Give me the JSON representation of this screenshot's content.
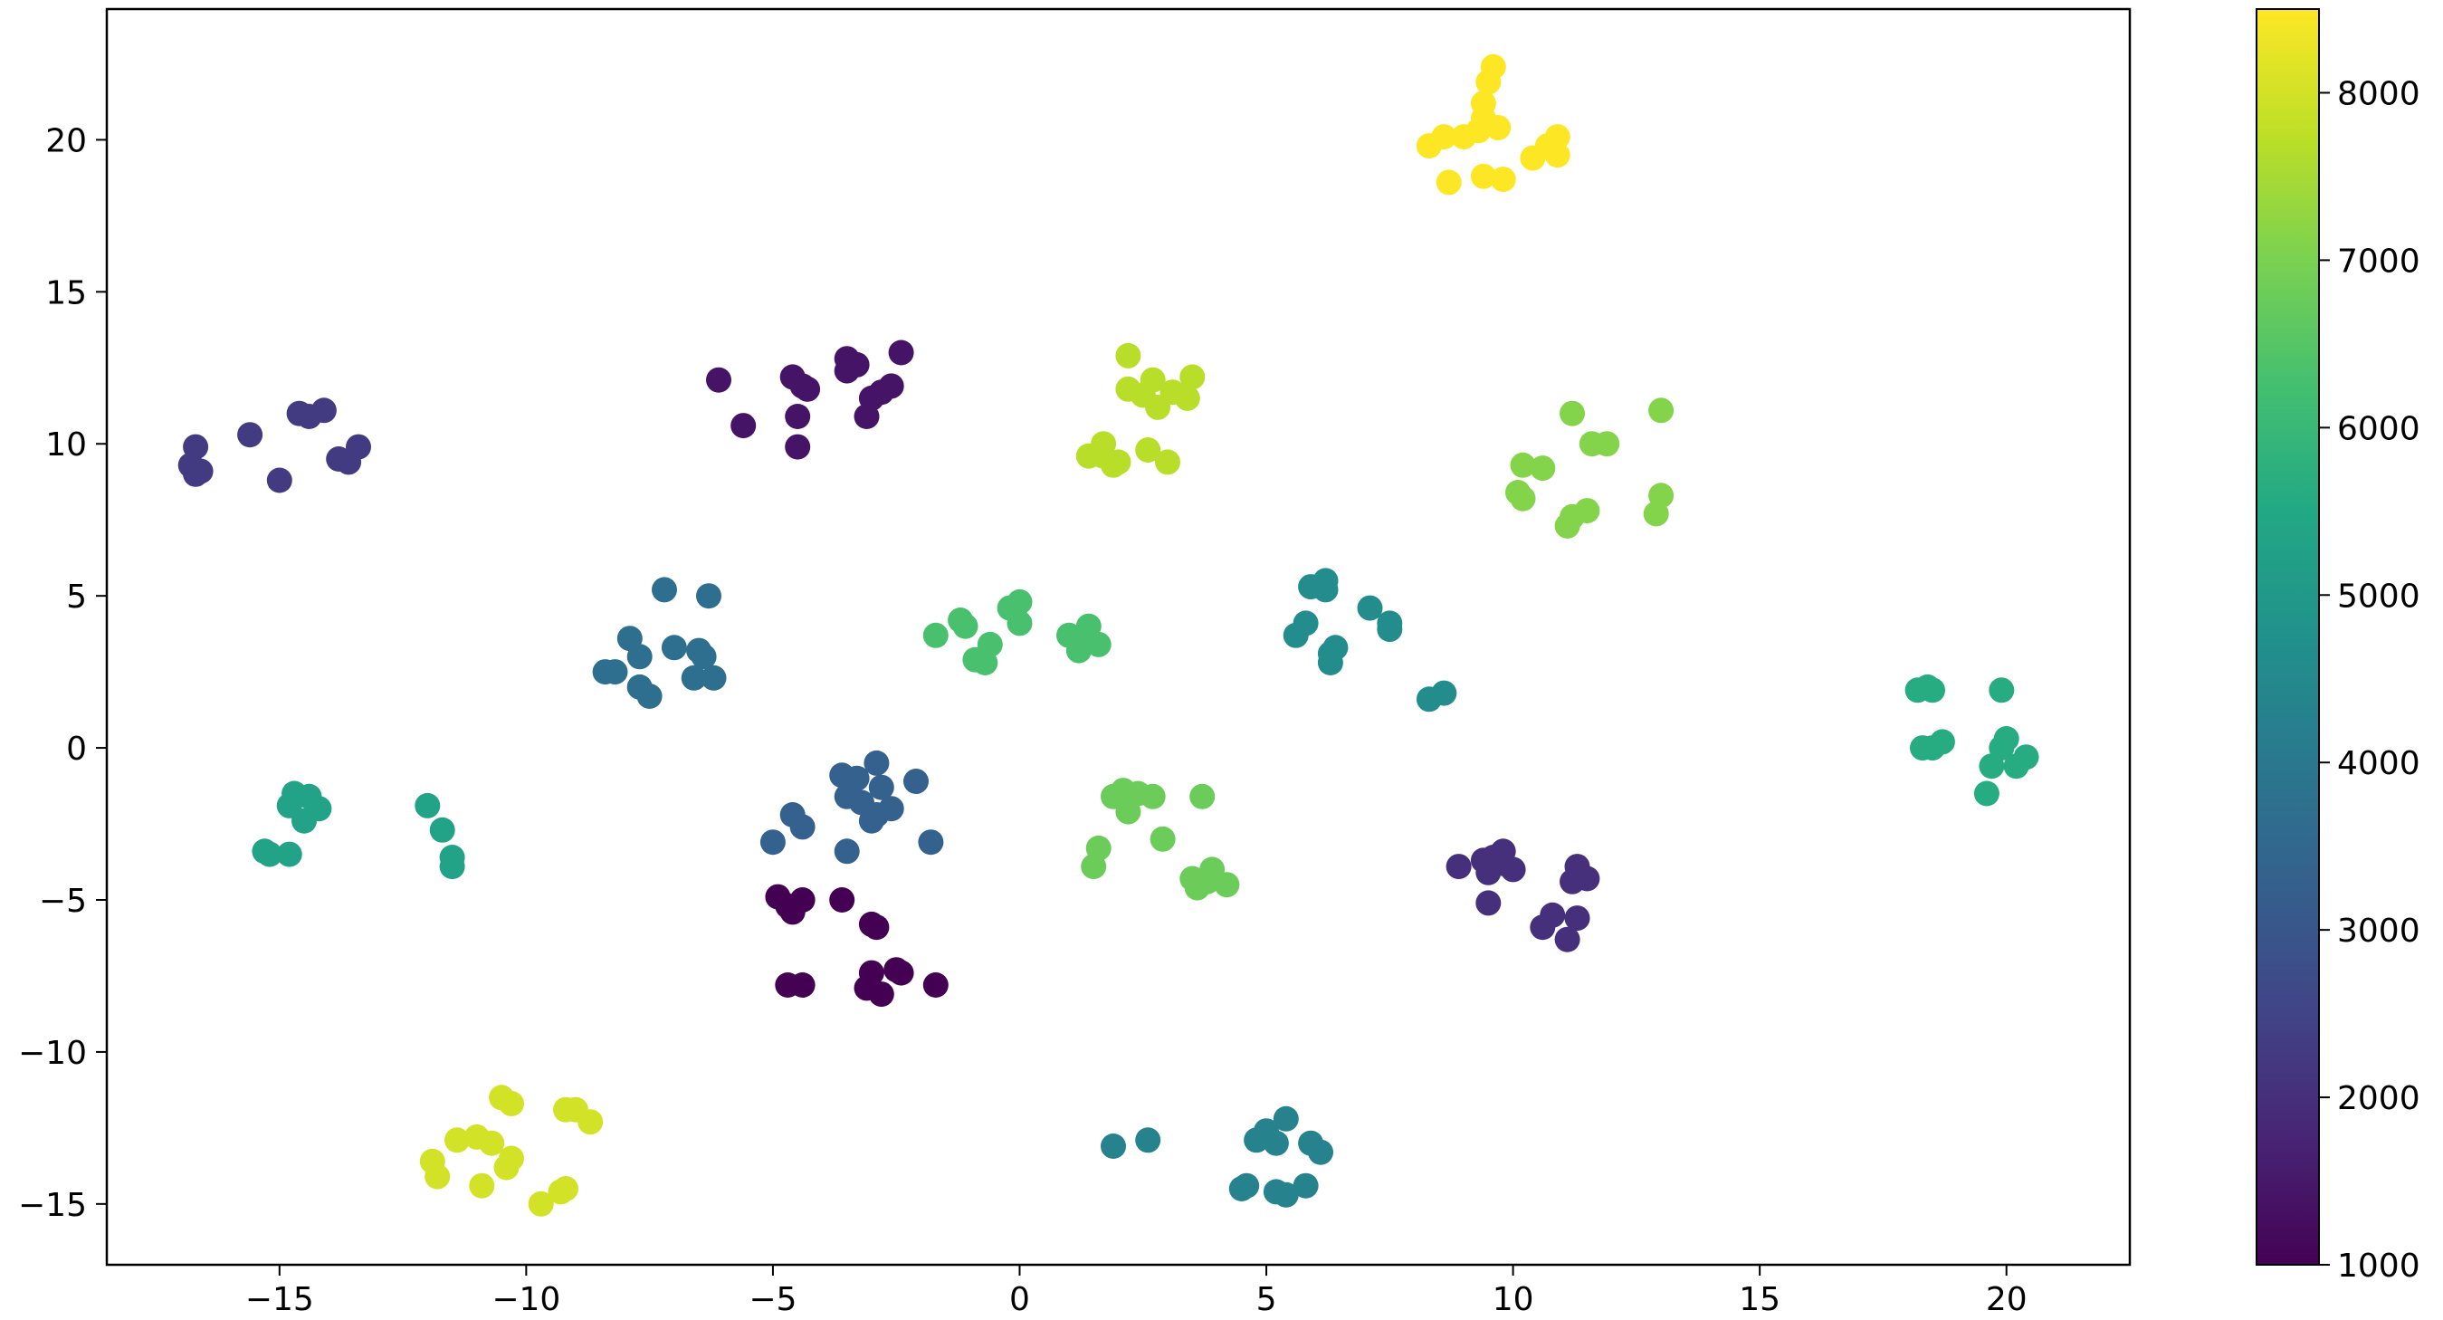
{
  "chart_data": {
    "type": "scatter",
    "title": "",
    "xlabel": "",
    "ylabel": "",
    "xlim": [
      -18.5,
      22.5
    ],
    "ylim": [
      -17.0,
      24.3
    ],
    "grid": false,
    "x_ticks": [
      -15,
      -10,
      -5,
      0,
      5,
      10,
      15,
      20
    ],
    "x_tick_labels": [
      "−15",
      "−10",
      "−5",
      "0",
      "5",
      "10",
      "15",
      "20"
    ],
    "y_ticks": [
      -15,
      -10,
      -5,
      0,
      5,
      10,
      15,
      20
    ],
    "y_tick_labels": [
      "−15",
      "−10",
      "−5",
      "0",
      "5",
      "10",
      "15",
      "20"
    ],
    "colorbar": {
      "colormap": "viridis",
      "range": [
        1000,
        8500
      ],
      "ticks": [
        1000,
        2000,
        3000,
        4000,
        5000,
        6000,
        7000,
        8000
      ],
      "tick_labels": [
        "1000",
        "2000",
        "3000",
        "4000",
        "5000",
        "6000",
        "7000",
        "8000"
      ]
    },
    "marker_color_note": "viridis",
    "points": [
      {
        "x": 9.6,
        "y": 22.4,
        "c": 8500
      },
      {
        "x": 9.5,
        "y": 21.9,
        "c": 8500
      },
      {
        "x": 9.4,
        "y": 21.2,
        "c": 8500
      },
      {
        "x": 9.4,
        "y": 20.7,
        "c": 8500
      },
      {
        "x": 9.3,
        "y": 20.3,
        "c": 8500
      },
      {
        "x": 9.7,
        "y": 20.4,
        "c": 8500
      },
      {
        "x": 9.0,
        "y": 20.1,
        "c": 8500
      },
      {
        "x": 8.6,
        "y": 20.1,
        "c": 8500
      },
      {
        "x": 8.3,
        "y": 19.8,
        "c": 8500
      },
      {
        "x": 8.7,
        "y": 18.6,
        "c": 8500
      },
      {
        "x": 9.4,
        "y": 18.8,
        "c": 8500
      },
      {
        "x": 9.8,
        "y": 18.7,
        "c": 8500
      },
      {
        "x": 10.4,
        "y": 19.4,
        "c": 8500
      },
      {
        "x": 10.7,
        "y": 19.8,
        "c": 8500
      },
      {
        "x": 10.9,
        "y": 20.1,
        "c": 8500
      },
      {
        "x": 10.9,
        "y": 19.5,
        "c": 8500
      },
      {
        "x": -2.4,
        "y": 13.0,
        "c": 1400
      },
      {
        "x": -3.5,
        "y": 12.8,
        "c": 1400
      },
      {
        "x": -3.3,
        "y": 12.6,
        "c": 1400
      },
      {
        "x": -3.5,
        "y": 12.4,
        "c": 1400
      },
      {
        "x": -4.6,
        "y": 12.2,
        "c": 1400
      },
      {
        "x": -4.4,
        "y": 11.9,
        "c": 1400
      },
      {
        "x": -4.3,
        "y": 11.8,
        "c": 1400
      },
      {
        "x": -6.1,
        "y": 12.1,
        "c": 1400
      },
      {
        "x": -2.6,
        "y": 11.9,
        "c": 1400
      },
      {
        "x": -2.8,
        "y": 11.7,
        "c": 1400
      },
      {
        "x": -3.0,
        "y": 11.5,
        "c": 1400
      },
      {
        "x": -4.5,
        "y": 10.9,
        "c": 1400
      },
      {
        "x": -3.1,
        "y": 10.9,
        "c": 1400
      },
      {
        "x": -5.6,
        "y": 10.6,
        "c": 1400
      },
      {
        "x": -4.5,
        "y": 9.9,
        "c": 1400
      },
      {
        "x": -16.7,
        "y": 9.9,
        "c": 2300
      },
      {
        "x": -16.8,
        "y": 9.3,
        "c": 2300
      },
      {
        "x": -16.7,
        "y": 9.0,
        "c": 2300
      },
      {
        "x": -16.6,
        "y": 9.1,
        "c": 2300
      },
      {
        "x": -15.6,
        "y": 10.3,
        "c": 2300
      },
      {
        "x": -15.0,
        "y": 8.8,
        "c": 2300
      },
      {
        "x": -14.6,
        "y": 11.0,
        "c": 2300
      },
      {
        "x": -14.4,
        "y": 10.9,
        "c": 2300
      },
      {
        "x": -14.1,
        "y": 11.1,
        "c": 2300
      },
      {
        "x": -13.8,
        "y": 9.5,
        "c": 2300
      },
      {
        "x": -13.6,
        "y": 9.4,
        "c": 2300
      },
      {
        "x": -13.4,
        "y": 9.9,
        "c": 2300
      },
      {
        "x": 2.2,
        "y": 12.9,
        "c": 7700
      },
      {
        "x": 3.5,
        "y": 12.2,
        "c": 7700
      },
      {
        "x": 2.7,
        "y": 12.1,
        "c": 7700
      },
      {
        "x": 2.2,
        "y": 11.8,
        "c": 7700
      },
      {
        "x": 2.5,
        "y": 11.6,
        "c": 7700
      },
      {
        "x": 3.1,
        "y": 11.7,
        "c": 7700
      },
      {
        "x": 3.4,
        "y": 11.5,
        "c": 7700
      },
      {
        "x": 2.8,
        "y": 11.2,
        "c": 7700
      },
      {
        "x": 1.7,
        "y": 10.0,
        "c": 7700
      },
      {
        "x": 1.4,
        "y": 9.6,
        "c": 7700
      },
      {
        "x": 1.7,
        "y": 9.6,
        "c": 7700
      },
      {
        "x": 1.9,
        "y": 9.3,
        "c": 7700
      },
      {
        "x": 2.0,
        "y": 9.4,
        "c": 7700
      },
      {
        "x": 2.6,
        "y": 9.8,
        "c": 7700
      },
      {
        "x": 3.0,
        "y": 9.4,
        "c": 7700
      },
      {
        "x": 11.2,
        "y": 11.0,
        "c": 7100
      },
      {
        "x": 13.0,
        "y": 11.1,
        "c": 7100
      },
      {
        "x": 11.6,
        "y": 10.0,
        "c": 7100
      },
      {
        "x": 11.9,
        "y": 10.0,
        "c": 7100
      },
      {
        "x": 10.2,
        "y": 9.3,
        "c": 7100
      },
      {
        "x": 10.6,
        "y": 9.2,
        "c": 7100
      },
      {
        "x": 10.1,
        "y": 8.4,
        "c": 7100
      },
      {
        "x": 10.2,
        "y": 8.2,
        "c": 7100
      },
      {
        "x": 13.0,
        "y": 8.3,
        "c": 7100
      },
      {
        "x": 11.5,
        "y": 7.8,
        "c": 7100
      },
      {
        "x": 11.2,
        "y": 7.6,
        "c": 7100
      },
      {
        "x": 11.1,
        "y": 7.3,
        "c": 7100
      },
      {
        "x": 12.9,
        "y": 7.7,
        "c": 7100
      },
      {
        "x": -7.2,
        "y": 5.2,
        "c": 3700
      },
      {
        "x": -6.3,
        "y": 5.0,
        "c": 3700
      },
      {
        "x": -7.9,
        "y": 3.6,
        "c": 3700
      },
      {
        "x": -7.0,
        "y": 3.3,
        "c": 3700
      },
      {
        "x": -6.5,
        "y": 3.2,
        "c": 3700
      },
      {
        "x": -6.4,
        "y": 3.0,
        "c": 3700
      },
      {
        "x": -7.7,
        "y": 3.0,
        "c": 3700
      },
      {
        "x": -8.4,
        "y": 2.5,
        "c": 3700
      },
      {
        "x": -8.2,
        "y": 2.5,
        "c": 3700
      },
      {
        "x": -6.6,
        "y": 2.3,
        "c": 3700
      },
      {
        "x": -6.2,
        "y": 2.3,
        "c": 3700
      },
      {
        "x": -7.7,
        "y": 2.0,
        "c": 3700
      },
      {
        "x": -7.5,
        "y": 1.7,
        "c": 3700
      },
      {
        "x": 0.0,
        "y": 4.8,
        "c": 6300
      },
      {
        "x": -0.2,
        "y": 4.6,
        "c": 6300
      },
      {
        "x": 0.0,
        "y": 4.1,
        "c": 6300
      },
      {
        "x": -1.2,
        "y": 4.2,
        "c": 6300
      },
      {
        "x": -1.1,
        "y": 4.0,
        "c": 6300
      },
      {
        "x": -1.7,
        "y": 3.7,
        "c": 6300
      },
      {
        "x": -0.6,
        "y": 3.4,
        "c": 6300
      },
      {
        "x": -0.9,
        "y": 2.9,
        "c": 6300
      },
      {
        "x": -0.7,
        "y": 2.8,
        "c": 6300
      },
      {
        "x": 1.0,
        "y": 3.7,
        "c": 6300
      },
      {
        "x": 1.4,
        "y": 4.0,
        "c": 6300
      },
      {
        "x": 1.4,
        "y": 3.5,
        "c": 6300
      },
      {
        "x": 1.6,
        "y": 3.4,
        "c": 6300
      },
      {
        "x": 1.2,
        "y": 3.2,
        "c": 6300
      },
      {
        "x": 6.2,
        "y": 5.5,
        "c": 4600
      },
      {
        "x": 5.9,
        "y": 5.3,
        "c": 4600
      },
      {
        "x": 6.2,
        "y": 5.2,
        "c": 4600
      },
      {
        "x": 7.1,
        "y": 4.6,
        "c": 4600
      },
      {
        "x": 5.8,
        "y": 4.1,
        "c": 4600
      },
      {
        "x": 7.5,
        "y": 4.1,
        "c": 4600
      },
      {
        "x": 7.5,
        "y": 3.9,
        "c": 4600
      },
      {
        "x": 5.6,
        "y": 3.7,
        "c": 4600
      },
      {
        "x": 6.4,
        "y": 3.3,
        "c": 4600
      },
      {
        "x": 6.3,
        "y": 3.1,
        "c": 4600
      },
      {
        "x": 6.3,
        "y": 2.8,
        "c": 4600
      },
      {
        "x": 8.6,
        "y": 1.8,
        "c": 4600
      },
      {
        "x": 8.3,
        "y": 1.6,
        "c": 4600
      },
      {
        "x": 18.2,
        "y": 1.9,
        "c": 5600
      },
      {
        "x": 18.4,
        "y": 2.0,
        "c": 5600
      },
      {
        "x": 18.5,
        "y": 1.9,
        "c": 5600
      },
      {
        "x": 19.9,
        "y": 1.9,
        "c": 5600
      },
      {
        "x": 20.0,
        "y": 0.3,
        "c": 5600
      },
      {
        "x": 18.7,
        "y": 0.2,
        "c": 5600
      },
      {
        "x": 18.3,
        "y": 0.0,
        "c": 5600
      },
      {
        "x": 18.5,
        "y": 0.0,
        "c": 5600
      },
      {
        "x": 19.9,
        "y": 0.0,
        "c": 5600
      },
      {
        "x": 20.4,
        "y": -0.3,
        "c": 5600
      },
      {
        "x": 20.2,
        "y": -0.6,
        "c": 5600
      },
      {
        "x": 19.7,
        "y": -0.6,
        "c": 5600
      },
      {
        "x": 19.6,
        "y": -1.5,
        "c": 5600
      },
      {
        "x": -2.9,
        "y": -0.5,
        "c": 3300
      },
      {
        "x": -3.6,
        "y": -0.9,
        "c": 3300
      },
      {
        "x": -3.3,
        "y": -1.0,
        "c": 3300
      },
      {
        "x": -2.1,
        "y": -1.1,
        "c": 3300
      },
      {
        "x": -2.8,
        "y": -1.3,
        "c": 3300
      },
      {
        "x": -3.5,
        "y": -1.6,
        "c": 3300
      },
      {
        "x": -3.2,
        "y": -1.8,
        "c": 3300
      },
      {
        "x": -2.6,
        "y": -2.0,
        "c": 3300
      },
      {
        "x": -4.6,
        "y": -2.2,
        "c": 3300
      },
      {
        "x": -2.9,
        "y": -2.2,
        "c": 3300
      },
      {
        "x": -3.0,
        "y": -2.4,
        "c": 3300
      },
      {
        "x": -4.4,
        "y": -2.6,
        "c": 3300
      },
      {
        "x": -5.0,
        "y": -3.1,
        "c": 3300
      },
      {
        "x": -1.8,
        "y": -3.1,
        "c": 3300
      },
      {
        "x": -3.5,
        "y": -3.4,
        "c": 3300
      },
      {
        "x": -14.7,
        "y": -1.5,
        "c": 5300
      },
      {
        "x": -14.4,
        "y": -1.6,
        "c": 5300
      },
      {
        "x": -14.8,
        "y": -1.9,
        "c": 5300
      },
      {
        "x": -14.2,
        "y": -2.0,
        "c": 5300
      },
      {
        "x": -14.5,
        "y": -2.4,
        "c": 5300
      },
      {
        "x": -15.3,
        "y": -3.4,
        "c": 5300
      },
      {
        "x": -15.2,
        "y": -3.5,
        "c": 5300
      },
      {
        "x": -14.8,
        "y": -3.5,
        "c": 5300
      },
      {
        "x": -12.0,
        "y": -1.9,
        "c": 5300
      },
      {
        "x": -11.7,
        "y": -2.7,
        "c": 5300
      },
      {
        "x": -11.5,
        "y": -3.6,
        "c": 5300
      },
      {
        "x": -11.5,
        "y": -3.9,
        "c": 5300
      },
      {
        "x": 2.1,
        "y": -1.4,
        "c": 6800
      },
      {
        "x": 2.4,
        "y": -1.5,
        "c": 6800
      },
      {
        "x": 2.7,
        "y": -1.6,
        "c": 6800
      },
      {
        "x": 1.9,
        "y": -1.6,
        "c": 6800
      },
      {
        "x": 3.7,
        "y": -1.6,
        "c": 6800
      },
      {
        "x": 2.2,
        "y": -2.1,
        "c": 6800
      },
      {
        "x": 2.9,
        "y": -3.0,
        "c": 6800
      },
      {
        "x": 1.6,
        "y": -3.3,
        "c": 6800
      },
      {
        "x": 1.5,
        "y": -3.9,
        "c": 6800
      },
      {
        "x": 3.9,
        "y": -4.0,
        "c": 6800
      },
      {
        "x": 3.5,
        "y": -4.3,
        "c": 6800
      },
      {
        "x": 3.8,
        "y": -4.4,
        "c": 6800
      },
      {
        "x": 4.2,
        "y": -4.5,
        "c": 6800
      },
      {
        "x": 3.6,
        "y": -4.6,
        "c": 6800
      },
      {
        "x": 9.8,
        "y": -3.4,
        "c": 2000
      },
      {
        "x": 9.6,
        "y": -3.6,
        "c": 2000
      },
      {
        "x": 9.4,
        "y": -3.7,
        "c": 2000
      },
      {
        "x": 9.8,
        "y": -3.8,
        "c": 2000
      },
      {
        "x": 8.9,
        "y": -3.9,
        "c": 2000
      },
      {
        "x": 10.0,
        "y": -4.0,
        "c": 2000
      },
      {
        "x": 9.5,
        "y": -4.1,
        "c": 2000
      },
      {
        "x": 11.3,
        "y": -3.9,
        "c": 2000
      },
      {
        "x": 11.5,
        "y": -4.3,
        "c": 2000
      },
      {
        "x": 11.2,
        "y": -4.4,
        "c": 2000
      },
      {
        "x": 9.5,
        "y": -5.1,
        "c": 2000
      },
      {
        "x": 10.8,
        "y": -5.5,
        "c": 2000
      },
      {
        "x": 11.3,
        "y": -5.6,
        "c": 2000
      },
      {
        "x": 10.6,
        "y": -5.9,
        "c": 2000
      },
      {
        "x": 11.1,
        "y": -6.3,
        "c": 2000
      },
      {
        "x": -4.9,
        "y": -4.9,
        "c": 1000
      },
      {
        "x": -4.4,
        "y": -5.0,
        "c": 1000
      },
      {
        "x": -4.7,
        "y": -5.2,
        "c": 1000
      },
      {
        "x": -3.6,
        "y": -5.0,
        "c": 1000
      },
      {
        "x": -4.6,
        "y": -5.4,
        "c": 1000
      },
      {
        "x": -3.0,
        "y": -5.8,
        "c": 1000
      },
      {
        "x": -2.9,
        "y": -5.9,
        "c": 1000
      },
      {
        "x": -4.7,
        "y": -7.8,
        "c": 1000
      },
      {
        "x": -4.4,
        "y": -7.8,
        "c": 1000
      },
      {
        "x": -2.5,
        "y": -7.3,
        "c": 1000
      },
      {
        "x": -2.4,
        "y": -7.4,
        "c": 1000
      },
      {
        "x": -3.0,
        "y": -7.4,
        "c": 1000
      },
      {
        "x": -1.7,
        "y": -7.8,
        "c": 1000
      },
      {
        "x": -3.1,
        "y": -7.9,
        "c": 1000
      },
      {
        "x": -2.8,
        "y": -8.1,
        "c": 1000
      },
      {
        "x": -10.5,
        "y": -11.5,
        "c": 8000
      },
      {
        "x": -10.3,
        "y": -11.7,
        "c": 8000
      },
      {
        "x": -9.2,
        "y": -11.9,
        "c": 8000
      },
      {
        "x": -9.0,
        "y": -11.9,
        "c": 8000
      },
      {
        "x": -8.7,
        "y": -12.3,
        "c": 8000
      },
      {
        "x": -11.0,
        "y": -12.8,
        "c": 8000
      },
      {
        "x": -11.4,
        "y": -12.9,
        "c": 8000
      },
      {
        "x": -10.7,
        "y": -13.0,
        "c": 8000
      },
      {
        "x": -11.9,
        "y": -13.6,
        "c": 8000
      },
      {
        "x": -10.3,
        "y": -13.5,
        "c": 8000
      },
      {
        "x": -10.4,
        "y": -13.8,
        "c": 8000
      },
      {
        "x": -11.8,
        "y": -14.1,
        "c": 8000
      },
      {
        "x": -10.9,
        "y": -14.4,
        "c": 8000
      },
      {
        "x": -9.2,
        "y": -14.5,
        "c": 8000
      },
      {
        "x": -9.3,
        "y": -14.6,
        "c": 8000
      },
      {
        "x": -9.7,
        "y": -15.0,
        "c": 8000
      },
      {
        "x": 5.4,
        "y": -12.2,
        "c": 4300
      },
      {
        "x": 5.0,
        "y": -12.6,
        "c": 4300
      },
      {
        "x": 4.8,
        "y": -12.9,
        "c": 4300
      },
      {
        "x": 5.2,
        "y": -13.0,
        "c": 4300
      },
      {
        "x": 5.9,
        "y": -13.0,
        "c": 4300
      },
      {
        "x": 6.1,
        "y": -13.3,
        "c": 4300
      },
      {
        "x": 2.6,
        "y": -12.9,
        "c": 4300
      },
      {
        "x": 1.9,
        "y": -13.1,
        "c": 4300
      },
      {
        "x": 4.6,
        "y": -14.4,
        "c": 4300
      },
      {
        "x": 4.5,
        "y": -14.5,
        "c": 4300
      },
      {
        "x": 5.8,
        "y": -14.4,
        "c": 4300
      },
      {
        "x": 5.2,
        "y": -14.6,
        "c": 4300
      },
      {
        "x": 5.4,
        "y": -14.7,
        "c": 4300
      }
    ]
  }
}
